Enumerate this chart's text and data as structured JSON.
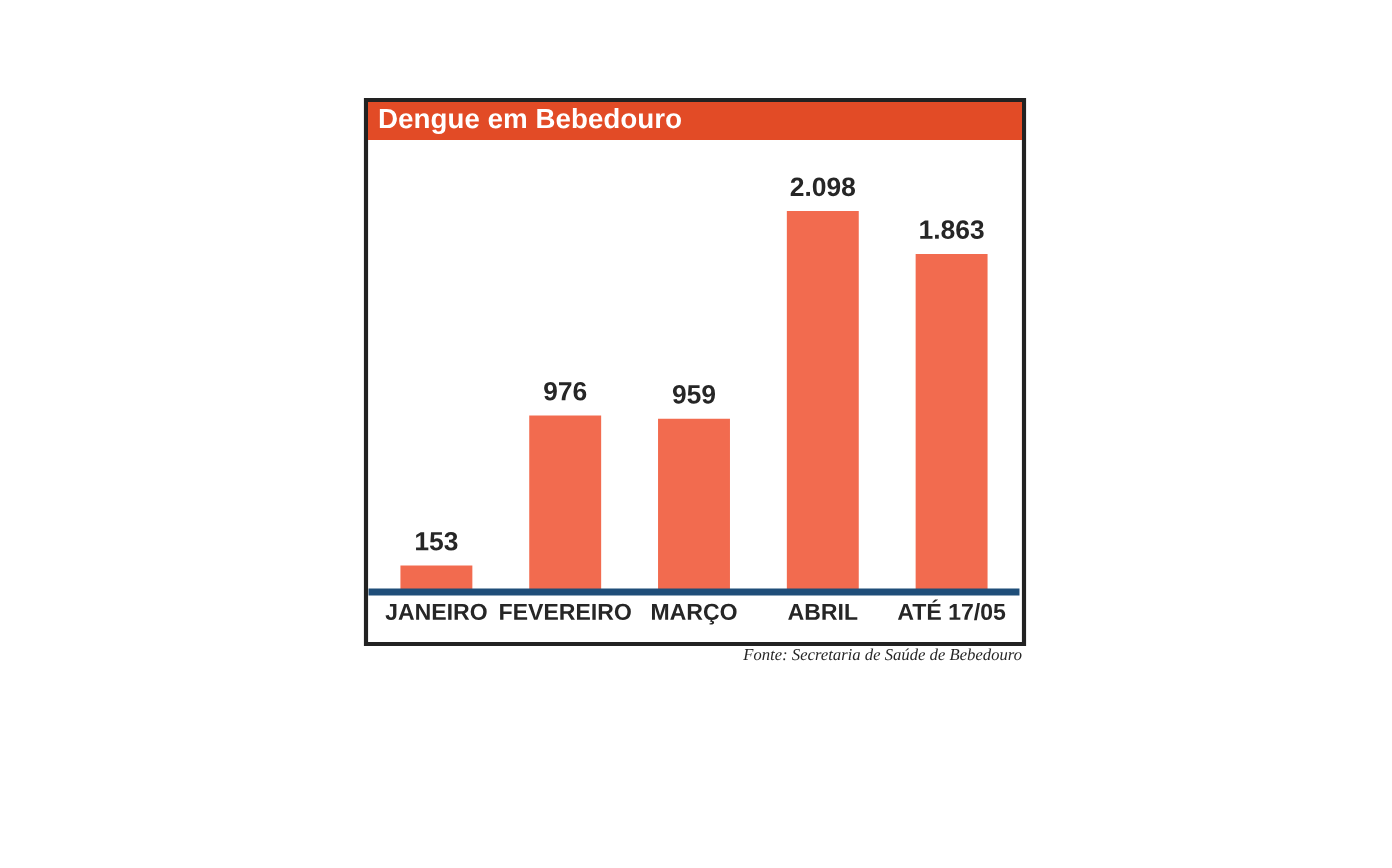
{
  "chart_data": {
    "type": "bar",
    "title": "Dengue em Bebedouro",
    "categories": [
      "JANEIRO",
      "FEVEREIRO",
      "MARÇO",
      "ABRIL",
      "ATÉ 17/05"
    ],
    "values": [
      153,
      976,
      959,
      2098,
      1863
    ],
    "value_labels": [
      "153",
      "976",
      "959",
      "2.098",
      "1.863"
    ],
    "color": "#f26b4f",
    "grid": false,
    "legend": false,
    "annotations": [
      "Fonte: Secretaria de Saúde de Bebedouro"
    ]
  }
}
